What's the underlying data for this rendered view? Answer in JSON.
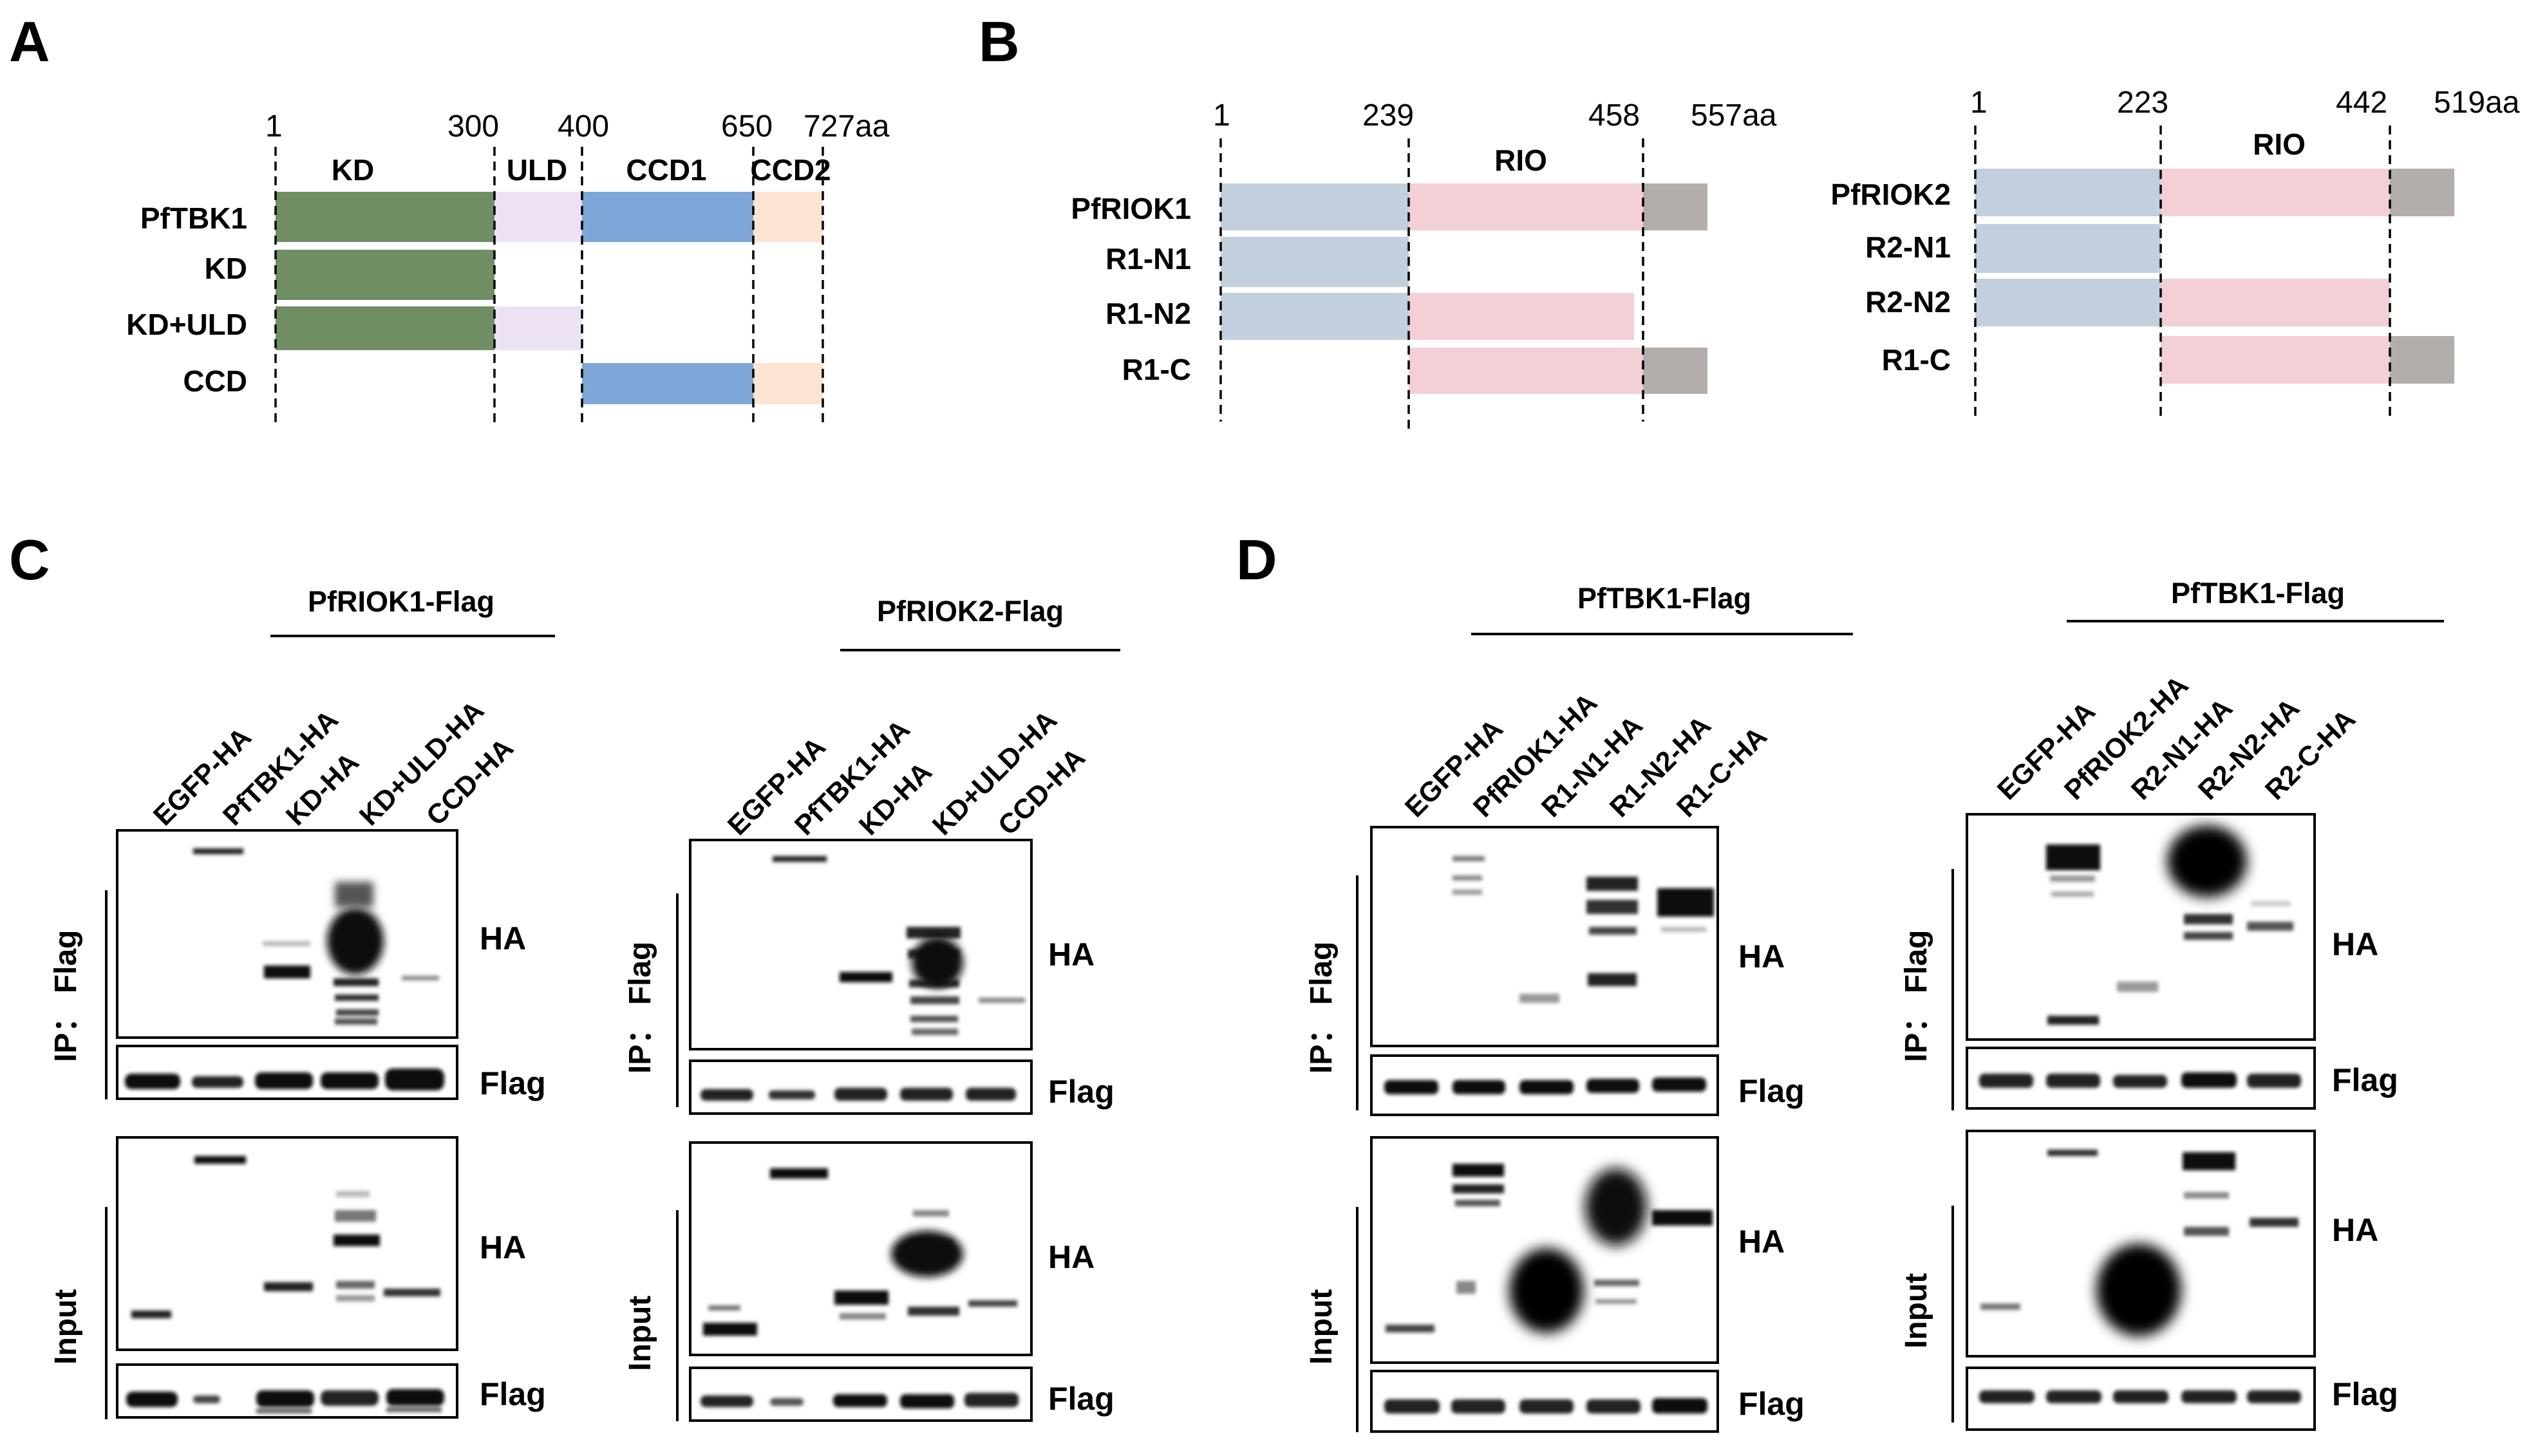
{
  "figure": {
    "panels": {
      "A": "A",
      "B": "B",
      "C": "C",
      "D": "D"
    },
    "panel_A": {
      "ticks": [
        "1",
        "300",
        "400",
        "650",
        "727aa"
      ],
      "domain_labels": [
        "KD",
        "ULD",
        "CCD1",
        "CCD2"
      ],
      "rows": [
        "PfTBK1",
        "KD",
        "KD+ULD",
        "CCD"
      ],
      "colors": {
        "KD": "#6f8e64",
        "ULD": "#ede1f5",
        "CCD1": "#7ea6d6",
        "CCD2": "#fde4d2"
      }
    },
    "panel_B_left": {
      "ticks": [
        "1",
        "239",
        "458",
        "557aa"
      ],
      "domain_label": "RIO",
      "rows": [
        "PfRIOK1",
        "R1-N1",
        "R1-N2",
        "R1-C"
      ]
    },
    "panel_B_right": {
      "ticks": [
        "1",
        "223",
        "442",
        "519aa"
      ],
      "domain_label": "RIO",
      "rows": [
        "PfRIOK2",
        "R2-N1",
        "R2-N2",
        "R1-C"
      ]
    },
    "panel_B_colors": {
      "N": "#c2d0dd",
      "RIO": "#f3cfd6",
      "C": "#b3adac"
    },
    "blot_C1": {
      "group": "PfRIOK1-Flag",
      "lanes": [
        "EGFP-HA",
        "PfTBK1-HA",
        "KD-HA",
        "KD+ULD-HA",
        "CCD-HA"
      ],
      "ip_label": "IP： Flag",
      "input_label": "Input",
      "bands": [
        "HA",
        "Flag",
        "HA",
        "Flag"
      ]
    },
    "blot_C2": {
      "group": "PfRIOK2-Flag",
      "lanes": [
        "EGFP-HA",
        "PfTBK1-HA",
        "KD-HA",
        "KD+ULD-HA",
        "CCD-HA"
      ],
      "ip_label": "IP： Flag",
      "input_label": "Input",
      "bands": [
        "HA",
        "Flag",
        "HA",
        "Flag"
      ]
    },
    "blot_D1": {
      "group": "PfTBK1-Flag",
      "lanes": [
        "EGFP-HA",
        "PfRIOK1-HA",
        "R1-N1-HA",
        "R1-N2-HA",
        "R1-C-HA"
      ],
      "ip_label": "IP： Flag",
      "input_label": "Input",
      "bands": [
        "HA",
        "Flag",
        "HA",
        "Flag"
      ]
    },
    "blot_D2": {
      "group": "PfTBK1-Flag",
      "lanes": [
        "EGFP-HA",
        "PfRIOK2-HA",
        "R2-N1-HA",
        "R2-N2-HA",
        "R2-C-HA"
      ],
      "ip_label": "IP： Flag",
      "input_label": "Input",
      "bands": [
        "HA",
        "Flag",
        "HA",
        "Flag"
      ]
    }
  }
}
